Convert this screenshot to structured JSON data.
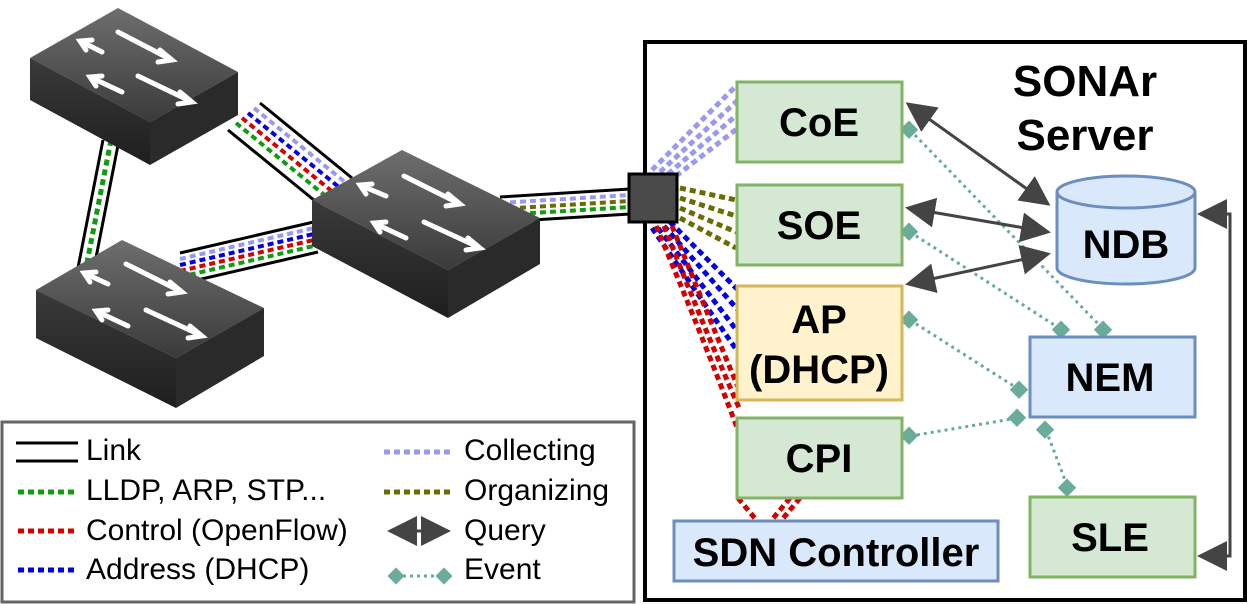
{
  "server": {
    "title_line1": "SONAr",
    "title_line2": "Server"
  },
  "modules": {
    "coe": "CoE",
    "soe": "SOE",
    "ap_line1": "AP",
    "ap_line2": "(DHCP)",
    "cpi": "CPI",
    "ndb": "NDB",
    "nem": "NEM",
    "sle": "SLE",
    "sdn_controller": "SDN Controller"
  },
  "legend": {
    "link": "Link",
    "lldp": "LLDP, ARP, STP...",
    "control": "Control (OpenFlow)",
    "address": "Address (DHCP)",
    "collecting": "Collecting",
    "organizing": "Organizing",
    "query": "Query",
    "event": "Event"
  },
  "colors": {
    "lldp": "#0f9d0f",
    "control": "#d40000",
    "address": "#0000e0",
    "collecting": "#9999ee",
    "organizing": "#6b6b00",
    "query": "#444444",
    "event": "#6aab9c",
    "green_box_fill": "#d5e8d4",
    "green_box_stroke": "#82b366",
    "blue_box_fill": "#dae8fc",
    "blue_box_stroke": "#6c8ebf",
    "yellow_box_fill": "#fff2cc",
    "yellow_box_stroke": "#d6b656"
  },
  "icons": {
    "switch": "network-switch-icon",
    "port": "port-square-icon"
  }
}
